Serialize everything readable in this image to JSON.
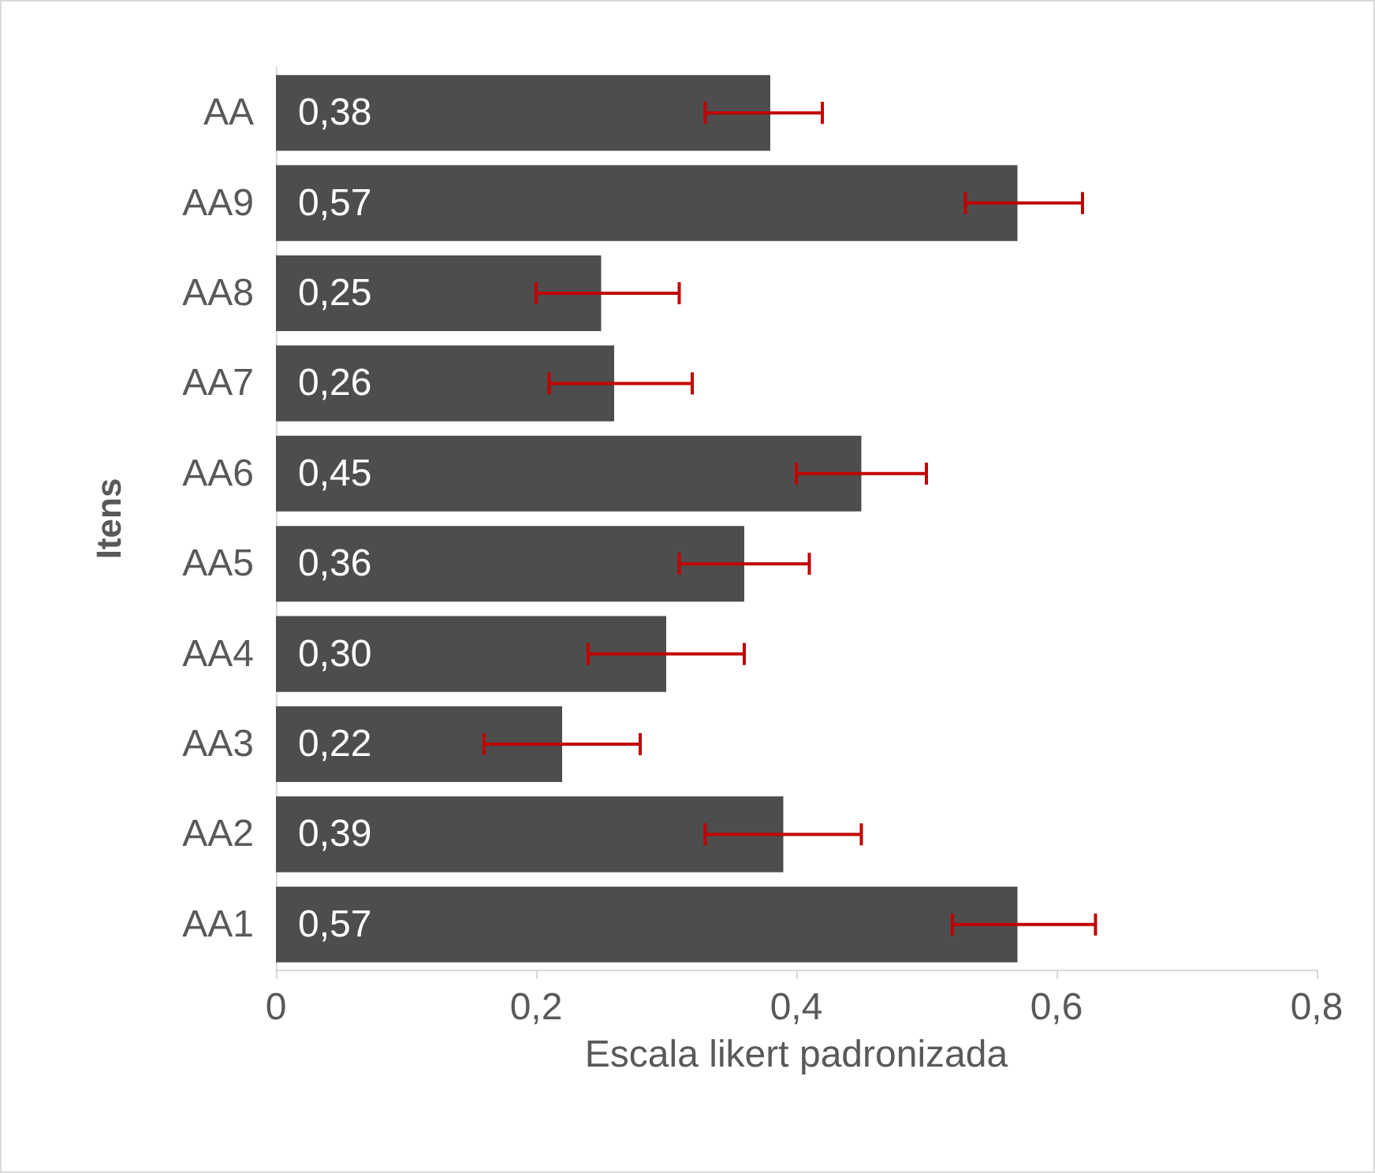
{
  "chart_data": {
    "type": "bar",
    "orientation": "horizontal",
    "xlabel": "Escala likert padronizada",
    "ylabel": "Itens",
    "categories": [
      "AA",
      "AA9",
      "AA8",
      "AA7",
      "AA6",
      "AA5",
      "AA4",
      "AA3",
      "AA2",
      "AA1"
    ],
    "values": [
      0.38,
      0.57,
      0.25,
      0.26,
      0.45,
      0.36,
      0.3,
      0.22,
      0.39,
      0.57
    ],
    "value_labels": [
      "0,38",
      "0,57",
      "0,25",
      "0,26",
      "0,45",
      "0,36",
      "0,30",
      "0,22",
      "0,39",
      "0,57"
    ],
    "errors": [
      [
        0.33,
        0.42
      ],
      [
        0.53,
        0.62
      ],
      [
        0.2,
        0.31
      ],
      [
        0.21,
        0.32
      ],
      [
        0.4,
        0.5
      ],
      [
        0.31,
        0.41
      ],
      [
        0.24,
        0.36
      ],
      [
        0.16,
        0.28
      ],
      [
        0.33,
        0.45
      ],
      [
        0.52,
        0.63
      ]
    ],
    "color": "#4d4d4d",
    "xlim": [
      0,
      0.8
    ],
    "xticks": [
      0,
      {
        "value": 0.2,
        "label": "0,2"
      },
      {
        "value": 0.4,
        "label": "0,4"
      },
      {
        "value": 0.6,
        "label": "0,6"
      },
      {
        "value": 0.8,
        "label": "0,8"
      }
    ],
    "grid": false
  }
}
